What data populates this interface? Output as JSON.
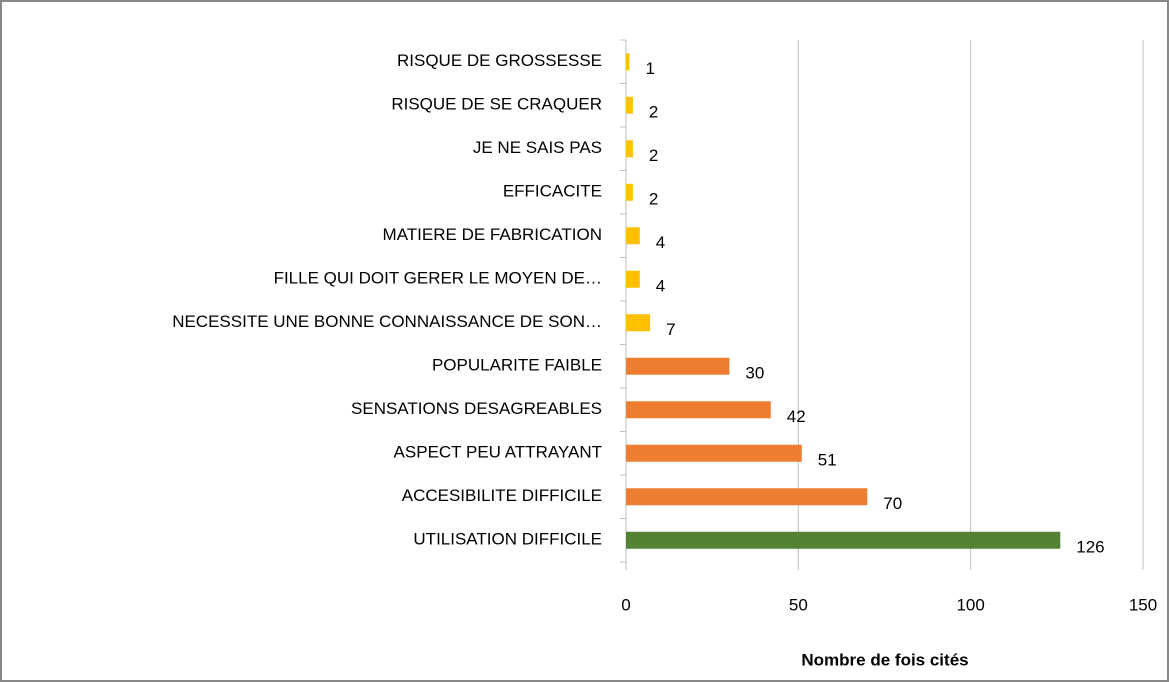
{
  "chart_data": {
    "type": "bar",
    "orientation": "horizontal",
    "categories": [
      "RISQUE DE GROSSESSE",
      "RISQUE DE SE CRAQUER",
      "JE NE SAIS PAS",
      "EFFICACITE",
      "MATIERE DE FABRICATION",
      "FILLE QUI DOIT GERER LE MOYEN DE…",
      "NECESSITE UNE BONNE CONNAISSANCE DE SON…",
      "POPULARITE FAIBLE",
      "SENSATIONS DESAGREABLES",
      "ASPECT PEU ATTRAYANT",
      "ACCESIBILITE DIFFICILE",
      "UTILISATION DIFFICILE"
    ],
    "values": [
      1,
      2,
      2,
      2,
      4,
      4,
      7,
      30,
      42,
      51,
      70,
      126
    ],
    "colors": [
      "#ffc000",
      "#ffc000",
      "#ffc000",
      "#ffc000",
      "#ffc000",
      "#ffc000",
      "#ffc000",
      "#ed7d31",
      "#ed7d31",
      "#ed7d31",
      "#ed7d31",
      "#548235"
    ],
    "xlabel": "Nombre de fois cités",
    "xlim": [
      0,
      150
    ],
    "xticks": [
      0,
      50,
      100,
      150
    ],
    "grid": true
  }
}
